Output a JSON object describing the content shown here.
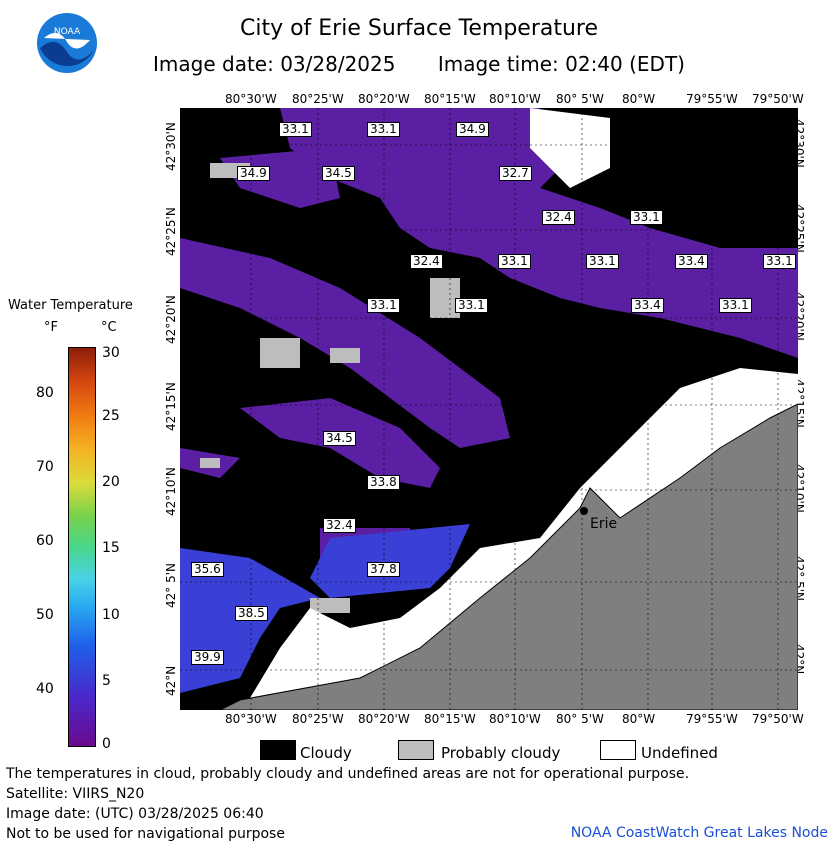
{
  "header": {
    "title": "City of Erie Surface Temperature",
    "image_date": "Image date: 03/28/2025",
    "image_time": "Image time: 02:40 (EDT)"
  },
  "logo": {
    "text": "NOAA"
  },
  "map": {
    "lon_ticks": [
      "80°30'W",
      "80°25'W",
      "80°20'W",
      "80°15'W",
      "80°10'W",
      "80° 5'W",
      "80°W",
      "79°55'W",
      "79°50'W"
    ],
    "lat_ticks": [
      "42°30'N",
      "42°25'N",
      "42°20'N",
      "42°15'N",
      "42°10'N",
      "42° 5'N",
      "42°N"
    ],
    "city": "Erie",
    "temp_labels": [
      "33.1",
      "33.1",
      "34.9",
      "34.9",
      "34.5",
      "32.7",
      "32.4",
      "33.1",
      "32.4",
      "33.1",
      "33.1",
      "33.4",
      "33.1",
      "33.1",
      "33.1",
      "33.4",
      "33.1",
      "34.5",
      "33.8",
      "32.4",
      "35.6",
      "37.8",
      "38.5",
      "39.9"
    ],
    "colors": {
      "cloud": "#000000",
      "probably_cloudy": "#bdbdbd",
      "undefined": "#ffffff",
      "land": "#7f7f7f",
      "cold_water": "#6a1fa8",
      "warm_water": "#2c5fe0"
    }
  },
  "legend": {
    "title": "Water Temperature",
    "unit_f": "°F",
    "unit_c": "°C",
    "f_ticks": [
      "80",
      "70",
      "60",
      "50",
      "40"
    ],
    "c_ticks": [
      "30",
      "25",
      "20",
      "15",
      "10",
      "5",
      "0"
    ]
  },
  "key": {
    "cloudy": "Cloudy",
    "probably_cloudy": "Probably cloudy",
    "undefined": "Undefined"
  },
  "notes": {
    "disclaimer": "The temperatures in cloud, probably cloudy and undefined areas are not for operational purpose.",
    "satellite": "Satellite: VIIRS_N20",
    "utc_date": "Image date: (UTC) 03/28/2025  06:40",
    "nav": "Not to be used for navigational purpose",
    "credit": "NOAA CoastWatch Great Lakes Node"
  }
}
